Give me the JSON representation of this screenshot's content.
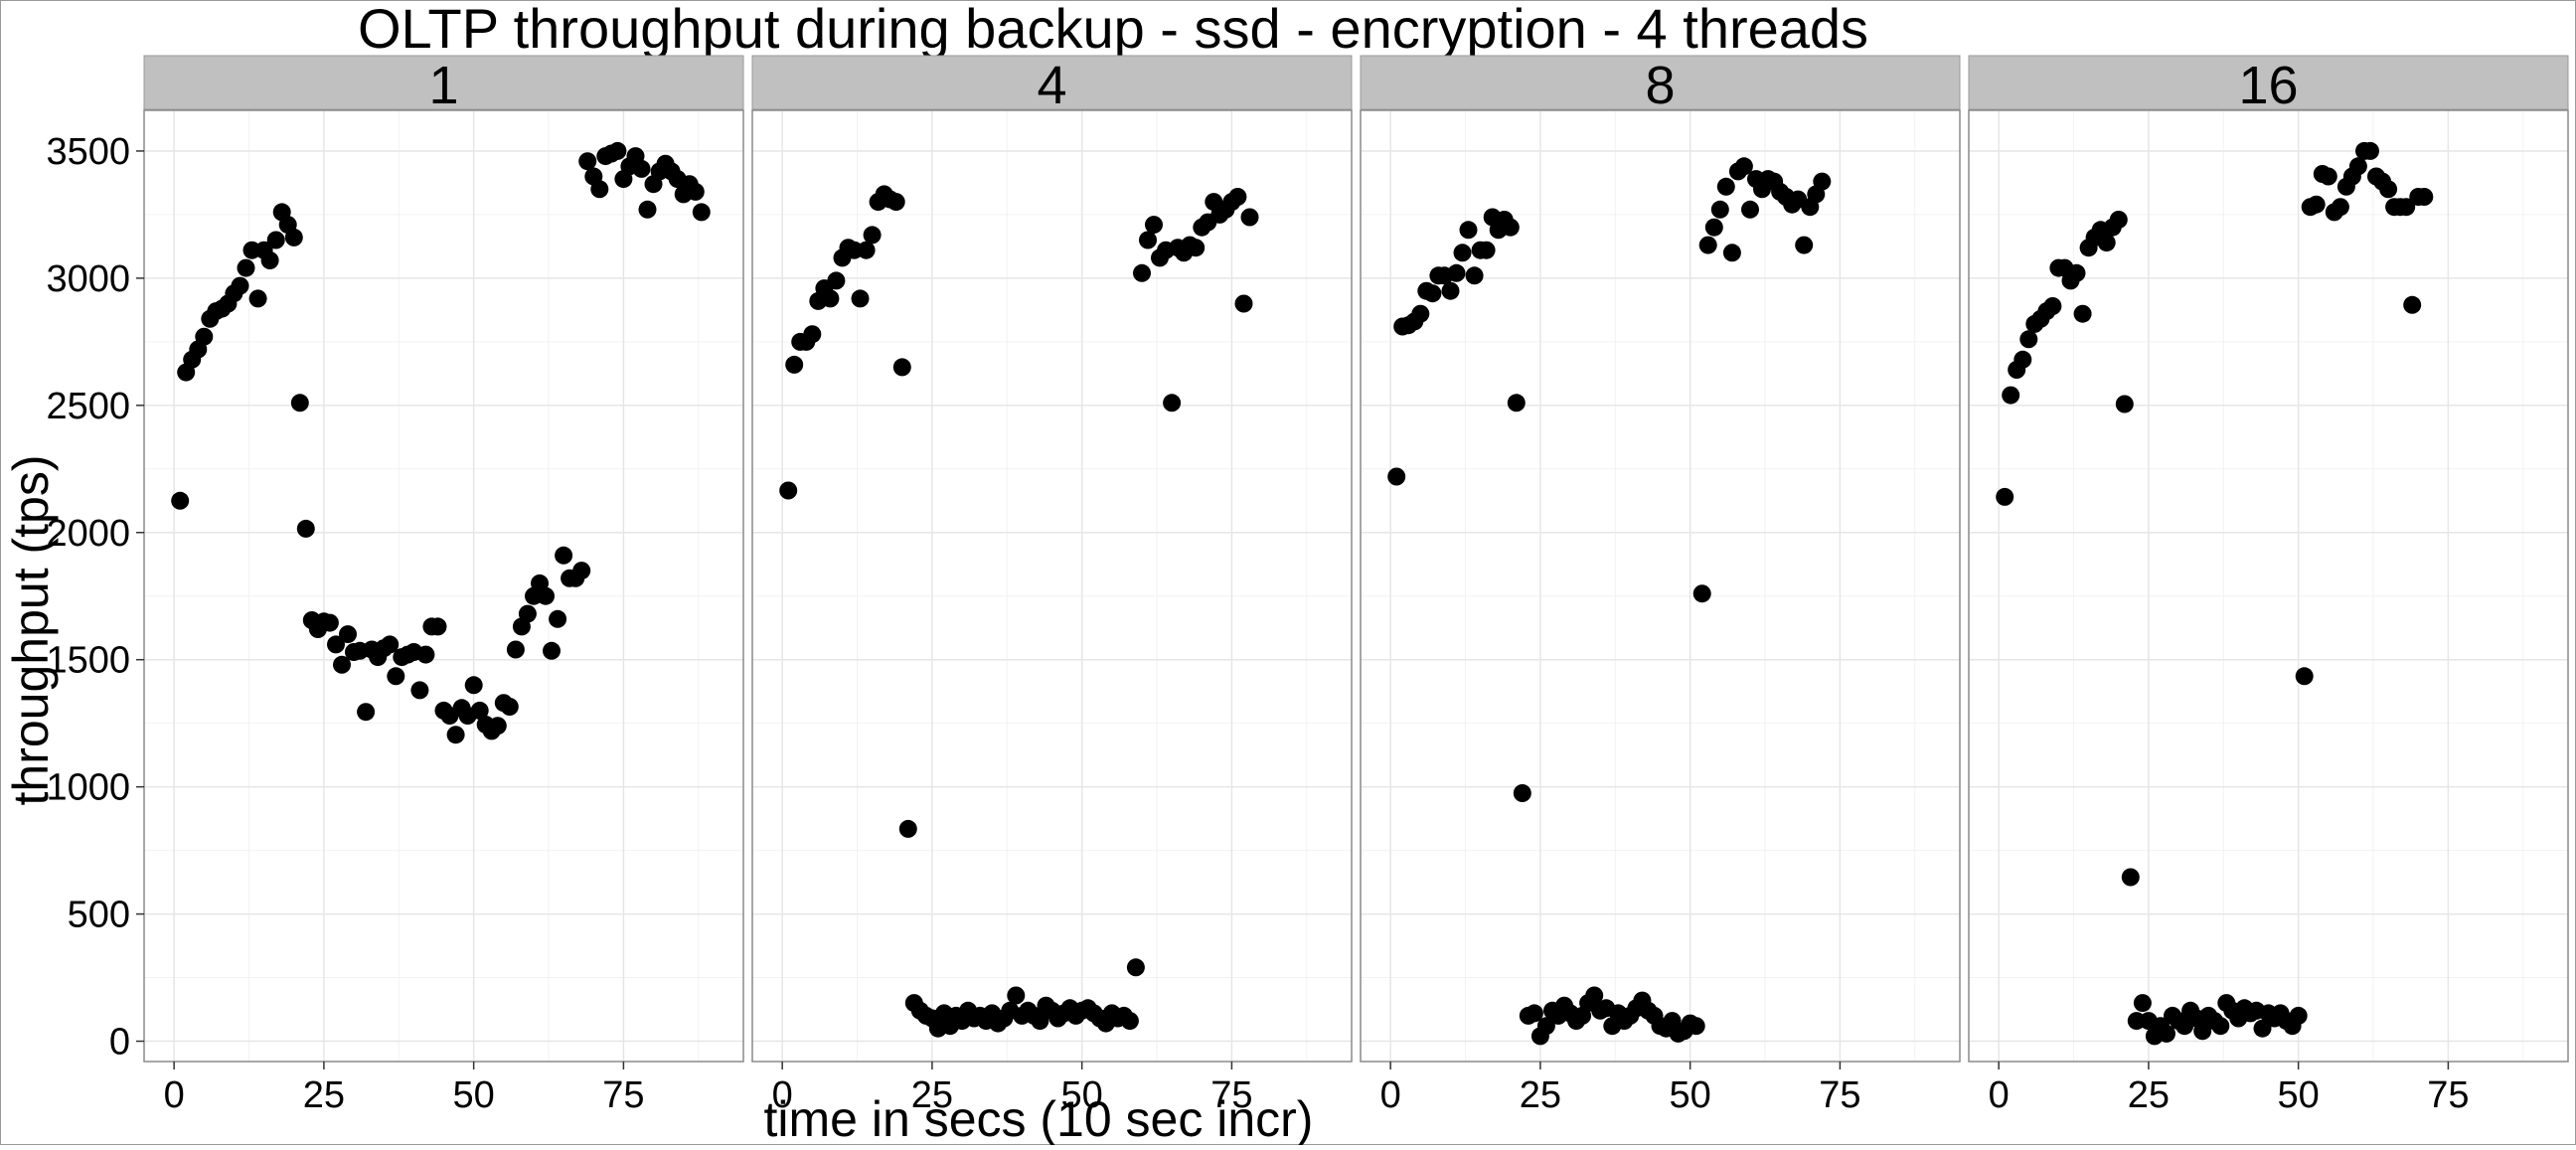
{
  "chart_data": {
    "type": "scatter",
    "title": "OLTP throughput during backup - ssd -  encryption  -  4  threads",
    "xlabel": "time in secs (10 sec incr)",
    "ylabel": "throughput (tps)",
    "xlim": [
      -5,
      95
    ],
    "ylim": [
      -80,
      3660
    ],
    "x_ticks": [
      0,
      25,
      50,
      75
    ],
    "y_ticks": [
      0,
      500,
      1000,
      1500,
      2000,
      2500,
      3000,
      3500
    ],
    "grid": true,
    "point_color": "#000000",
    "facets": [
      {
        "label": "1",
        "points": [
          [
            1,
            2125
          ],
          [
            2,
            2630
          ],
          [
            3,
            2680
          ],
          [
            4,
            2720
          ],
          [
            5,
            2770
          ],
          [
            6,
            2840
          ],
          [
            7,
            2870
          ],
          [
            8,
            2880
          ],
          [
            9,
            2900
          ],
          [
            10,
            2940
          ],
          [
            11,
            2970
          ],
          [
            12,
            3040
          ],
          [
            13,
            3110
          ],
          [
            14,
            2920
          ],
          [
            15,
            3110
          ],
          [
            16,
            3070
          ],
          [
            17,
            3150
          ],
          [
            18,
            3260
          ],
          [
            19,
            3210
          ],
          [
            20,
            3160
          ],
          [
            21,
            2510
          ],
          [
            22,
            2015
          ],
          [
            23,
            1655
          ],
          [
            24,
            1620
          ],
          [
            25,
            1650
          ],
          [
            26,
            1645
          ],
          [
            27,
            1560
          ],
          [
            28,
            1480
          ],
          [
            29,
            1600
          ],
          [
            30,
            1530
          ],
          [
            31,
            1535
          ],
          [
            32,
            1295
          ],
          [
            33,
            1540
          ],
          [
            34,
            1510
          ],
          [
            35,
            1545
          ],
          [
            36,
            1560
          ],
          [
            37,
            1435
          ],
          [
            38,
            1510
          ],
          [
            39,
            1520
          ],
          [
            40,
            1530
          ],
          [
            41,
            1380
          ],
          [
            42,
            1520
          ],
          [
            43,
            1630
          ],
          [
            44,
            1630
          ],
          [
            45,
            1300
          ],
          [
            46,
            1280
          ],
          [
            47,
            1205
          ],
          [
            48,
            1310
          ],
          [
            49,
            1280
          ],
          [
            50,
            1400
          ],
          [
            51,
            1300
          ],
          [
            52,
            1245
          ],
          [
            53,
            1220
          ],
          [
            54,
            1240
          ],
          [
            55,
            1330
          ],
          [
            56,
            1315
          ],
          [
            57,
            1540
          ],
          [
            58,
            1630
          ],
          [
            59,
            1680
          ],
          [
            60,
            1750
          ],
          [
            61,
            1800
          ],
          [
            62,
            1750
          ],
          [
            63,
            1535
          ],
          [
            64,
            1660
          ],
          [
            65,
            1910
          ],
          [
            66,
            1820
          ],
          [
            67,
            1820
          ],
          [
            68,
            1850
          ],
          [
            69,
            3460
          ],
          [
            70,
            3400
          ],
          [
            71,
            3350
          ],
          [
            72,
            3480
          ],
          [
            73,
            3490
          ],
          [
            74,
            3500
          ],
          [
            75,
            3390
          ],
          [
            76,
            3440
          ],
          [
            77,
            3480
          ],
          [
            78,
            3430
          ],
          [
            79,
            3270
          ],
          [
            80,
            3370
          ],
          [
            81,
            3420
          ],
          [
            82,
            3450
          ],
          [
            83,
            3420
          ],
          [
            84,
            3390
          ],
          [
            85,
            3330
          ],
          [
            86,
            3370
          ],
          [
            87,
            3340
          ],
          [
            88,
            3260
          ]
        ]
      },
      {
        "label": "4",
        "points": [
          [
            1,
            2165
          ],
          [
            2,
            2660
          ],
          [
            3,
            2750
          ],
          [
            4,
            2750
          ],
          [
            5,
            2780
          ],
          [
            6,
            2910
          ],
          [
            7,
            2960
          ],
          [
            8,
            2920
          ],
          [
            9,
            2990
          ],
          [
            10,
            3080
          ],
          [
            11,
            3120
          ],
          [
            12,
            3110
          ],
          [
            13,
            2920
          ],
          [
            14,
            3110
          ],
          [
            15,
            3170
          ],
          [
            16,
            3300
          ],
          [
            17,
            3330
          ],
          [
            18,
            3310
          ],
          [
            19,
            3300
          ],
          [
            20,
            2650
          ],
          [
            21,
            835
          ],
          [
            22,
            150
          ],
          [
            23,
            120
          ],
          [
            24,
            100
          ],
          [
            25,
            90
          ],
          [
            26,
            50
          ],
          [
            27,
            110
          ],
          [
            28,
            60
          ],
          [
            29,
            100
          ],
          [
            30,
            80
          ],
          [
            31,
            120
          ],
          [
            32,
            90
          ],
          [
            33,
            100
          ],
          [
            34,
            80
          ],
          [
            35,
            110
          ],
          [
            36,
            70
          ],
          [
            37,
            90
          ],
          [
            38,
            120
          ],
          [
            39,
            180
          ],
          [
            40,
            100
          ],
          [
            41,
            120
          ],
          [
            42,
            100
          ],
          [
            43,
            80
          ],
          [
            44,
            140
          ],
          [
            45,
            120
          ],
          [
            46,
            90
          ],
          [
            47,
            110
          ],
          [
            48,
            130
          ],
          [
            49,
            100
          ],
          [
            50,
            120
          ],
          [
            51,
            130
          ],
          [
            52,
            110
          ],
          [
            53,
            90
          ],
          [
            54,
            70
          ],
          [
            55,
            110
          ],
          [
            56,
            90
          ],
          [
            57,
            100
          ],
          [
            58,
            80
          ],
          [
            59,
            290
          ],
          [
            60,
            3020
          ],
          [
            61,
            3150
          ],
          [
            62,
            3210
          ],
          [
            63,
            3080
          ],
          [
            64,
            3110
          ],
          [
            65,
            2510
          ],
          [
            66,
            3120
          ],
          [
            67,
            3100
          ],
          [
            68,
            3130
          ],
          [
            69,
            3120
          ],
          [
            70,
            3200
          ],
          [
            71,
            3220
          ],
          [
            72,
            3300
          ],
          [
            73,
            3250
          ],
          [
            74,
            3270
          ],
          [
            75,
            3300
          ],
          [
            76,
            3320
          ],
          [
            77,
            2900
          ],
          [
            78,
            3240
          ]
        ]
      },
      {
        "label": "8",
        "points": [
          [
            1,
            2220
          ],
          [
            2,
            2810
          ],
          [
            3,
            2815
          ],
          [
            4,
            2830
          ],
          [
            5,
            2860
          ],
          [
            6,
            2950
          ],
          [
            7,
            2940
          ],
          [
            8,
            3010
          ],
          [
            9,
            3010
          ],
          [
            10,
            2950
          ],
          [
            11,
            3020
          ],
          [
            12,
            3100
          ],
          [
            13,
            3190
          ],
          [
            14,
            3010
          ],
          [
            15,
            3110
          ],
          [
            16,
            3110
          ],
          [
            17,
            3240
          ],
          [
            18,
            3190
          ],
          [
            19,
            3230
          ],
          [
            20,
            3200
          ],
          [
            21,
            2510
          ],
          [
            22,
            975
          ],
          [
            23,
            100
          ],
          [
            24,
            110
          ],
          [
            25,
            20
          ],
          [
            26,
            60
          ],
          [
            27,
            120
          ],
          [
            28,
            100
          ],
          [
            29,
            140
          ],
          [
            30,
            110
          ],
          [
            31,
            80
          ],
          [
            32,
            100
          ],
          [
            33,
            150
          ],
          [
            34,
            180
          ],
          [
            35,
            120
          ],
          [
            36,
            130
          ],
          [
            37,
            60
          ],
          [
            38,
            110
          ],
          [
            39,
            80
          ],
          [
            40,
            100
          ],
          [
            41,
            130
          ],
          [
            42,
            160
          ],
          [
            43,
            120
          ],
          [
            44,
            100
          ],
          [
            45,
            60
          ],
          [
            46,
            50
          ],
          [
            47,
            80
          ],
          [
            48,
            30
          ],
          [
            49,
            40
          ],
          [
            50,
            70
          ],
          [
            51,
            60
          ],
          [
            52,
            1760
          ],
          [
            53,
            3130
          ],
          [
            54,
            3200
          ],
          [
            55,
            3270
          ],
          [
            56,
            3360
          ],
          [
            57,
            3100
          ],
          [
            58,
            3420
          ],
          [
            59,
            3440
          ],
          [
            60,
            3270
          ],
          [
            61,
            3390
          ],
          [
            62,
            3350
          ],
          [
            63,
            3390
          ],
          [
            64,
            3380
          ],
          [
            65,
            3340
          ],
          [
            66,
            3320
          ],
          [
            67,
            3290
          ],
          [
            68,
            3310
          ],
          [
            69,
            3130
          ],
          [
            70,
            3280
          ],
          [
            71,
            3330
          ],
          [
            72,
            3380
          ]
        ]
      },
      {
        "label": "16",
        "points": [
          [
            1,
            2140
          ],
          [
            2,
            2540
          ],
          [
            3,
            2640
          ],
          [
            4,
            2680
          ],
          [
            5,
            2760
          ],
          [
            6,
            2820
          ],
          [
            7,
            2840
          ],
          [
            8,
            2870
          ],
          [
            9,
            2890
          ],
          [
            10,
            3040
          ],
          [
            11,
            3040
          ],
          [
            12,
            2990
          ],
          [
            13,
            3020
          ],
          [
            14,
            2860
          ],
          [
            15,
            3120
          ],
          [
            16,
            3160
          ],
          [
            17,
            3190
          ],
          [
            18,
            3140
          ],
          [
            19,
            3200
          ],
          [
            20,
            3230
          ],
          [
            21,
            2505
          ],
          [
            22,
            645
          ],
          [
            23,
            80
          ],
          [
            24,
            150
          ],
          [
            25,
            80
          ],
          [
            26,
            20
          ],
          [
            27,
            60
          ],
          [
            28,
            30
          ],
          [
            29,
            100
          ],
          [
            30,
            80
          ],
          [
            31,
            60
          ],
          [
            32,
            120
          ],
          [
            33,
            90
          ],
          [
            34,
            40
          ],
          [
            35,
            100
          ],
          [
            36,
            80
          ],
          [
            37,
            60
          ],
          [
            38,
            150
          ],
          [
            39,
            120
          ],
          [
            40,
            90
          ],
          [
            41,
            130
          ],
          [
            42,
            110
          ],
          [
            43,
            120
          ],
          [
            44,
            50
          ],
          [
            45,
            110
          ],
          [
            46,
            90
          ],
          [
            47,
            110
          ],
          [
            48,
            80
          ],
          [
            49,
            60
          ],
          [
            50,
            100
          ],
          [
            51,
            1435
          ],
          [
            52,
            3280
          ],
          [
            53,
            3290
          ],
          [
            54,
            3410
          ],
          [
            55,
            3400
          ],
          [
            56,
            3260
          ],
          [
            57,
            3280
          ],
          [
            58,
            3360
          ],
          [
            59,
            3400
          ],
          [
            60,
            3440
          ],
          [
            61,
            3500
          ],
          [
            62,
            3500
          ],
          [
            63,
            3400
          ],
          [
            64,
            3380
          ],
          [
            65,
            3350
          ],
          [
            66,
            3280
          ],
          [
            67,
            3280
          ],
          [
            68,
            3280
          ],
          [
            69,
            2895
          ],
          [
            70,
            3320
          ],
          [
            71,
            3320
          ]
        ]
      }
    ]
  }
}
